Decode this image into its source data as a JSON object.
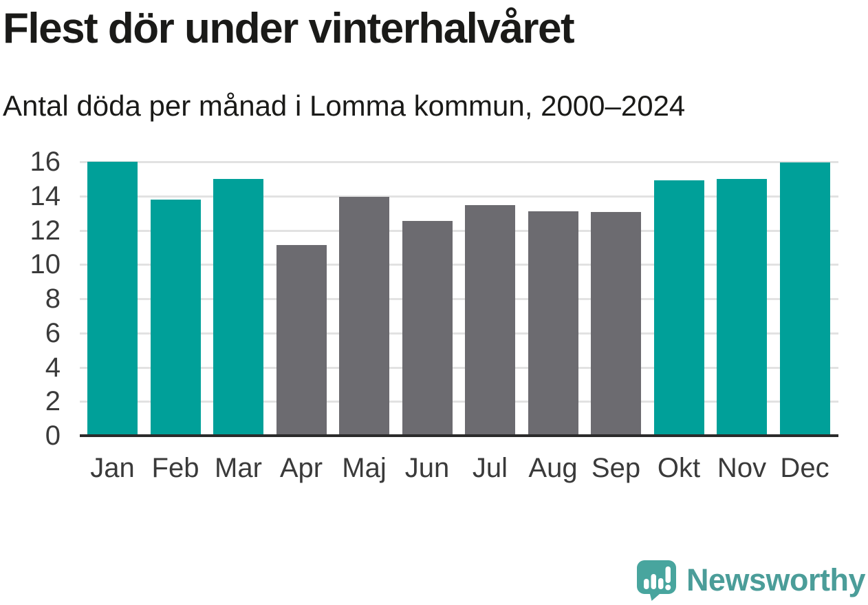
{
  "header": {
    "title": "Flest dör under vinterhalvåret",
    "subtitle": "Antal döda per månad i Lomma kommun, 2000–2024"
  },
  "chart_data": {
    "type": "bar",
    "title": "Flest dör under vinterhalvåret",
    "subtitle": "Antal döda per månad i Lomma kommun, 2000–2024",
    "categories": [
      "Jan",
      "Feb",
      "Mar",
      "Apr",
      "Maj",
      "Jun",
      "Jul",
      "Aug",
      "Sep",
      "Okt",
      "Nov",
      "Dec"
    ],
    "values": [
      16.0,
      13.8,
      15.0,
      11.15,
      13.95,
      12.55,
      13.45,
      13.1,
      13.05,
      14.9,
      15.0,
      15.95
    ],
    "ylim": [
      0,
      16
    ],
    "yticks": [
      0,
      2,
      4,
      6,
      8,
      10,
      12,
      14,
      16
    ],
    "grid": true,
    "legend": "none",
    "highlight_months": [
      "Jan",
      "Feb",
      "Mar",
      "Okt",
      "Nov",
      "Dec"
    ],
    "colors": {
      "highlight_bar": "#00A099",
      "normal_bar": "#6C6B70",
      "gridline": "#e2e2e2",
      "axis_line": "#2b2b2b",
      "tick_text": "#3a3a3a",
      "title_text": "#1a1a18"
    }
  },
  "footer": {
    "logo_text": "Newsworthy",
    "logo_color": "#48A59E",
    "logo_text_color": "#4B9D99"
  }
}
